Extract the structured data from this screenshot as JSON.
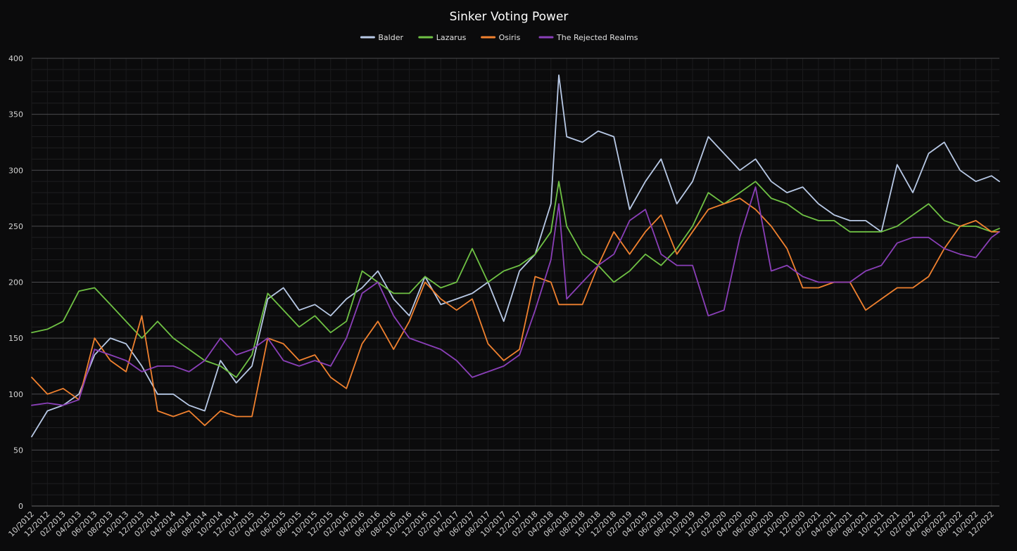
{
  "chart_data": {
    "type": "line",
    "title": "Sinker Voting Power",
    "xlabel": "",
    "ylabel": "",
    "ylim": [
      0,
      400
    ],
    "yticks": [
      0,
      50,
      100,
      150,
      200,
      250,
      300,
      350,
      400
    ],
    "x_start": "2012-10",
    "x_end": "2023-01",
    "xtick_labels": [
      "10/2012",
      "12/2012",
      "02/2013",
      "04/2013",
      "06/2013",
      "08/2013",
      "10/2013",
      "12/2013",
      "02/2014",
      "04/2014",
      "06/2014",
      "08/2014",
      "10/2014",
      "12/2014",
      "02/2015",
      "04/2015",
      "06/2015",
      "08/2015",
      "10/2015",
      "12/2015",
      "02/2016",
      "04/2016",
      "06/2016",
      "08/2016",
      "10/2016",
      "12/2016",
      "02/2017",
      "04/2017",
      "06/2017",
      "08/2017",
      "10/2017",
      "12/2017",
      "02/2018",
      "04/2018",
      "06/2018",
      "08/2018",
      "10/2018",
      "12/2018",
      "02/2019",
      "04/2019",
      "06/2019",
      "08/2019",
      "10/2019",
      "12/2019",
      "02/2020",
      "04/2020",
      "06/2020",
      "08/2020",
      "10/2020",
      "12/2020",
      "02/2021",
      "04/2021",
      "06/2021",
      "08/2021",
      "10/2021",
      "12/2021",
      "02/2022",
      "04/2022",
      "06/2022",
      "08/2022",
      "10/2022",
      "12/2022"
    ],
    "grid": true,
    "legend_position": "top-center",
    "background": "#0b0b0c",
    "series": [
      {
        "name": "Balder",
        "color": "#b8c9e6",
        "x": [
          "2012-10",
          "2012-12",
          "2013-02",
          "2013-04",
          "2013-06",
          "2013-08",
          "2013-10",
          "2013-12",
          "2014-02",
          "2014-04",
          "2014-06",
          "2014-08",
          "2014-10",
          "2014-12",
          "2015-02",
          "2015-04",
          "2015-06",
          "2015-08",
          "2015-10",
          "2015-12",
          "2016-02",
          "2016-04",
          "2016-06",
          "2016-08",
          "2016-10",
          "2016-12",
          "2017-02",
          "2017-04",
          "2017-06",
          "2017-08",
          "2017-10",
          "2017-12",
          "2018-02",
          "2018-04",
          "2018-05",
          "2018-06",
          "2018-08",
          "2018-10",
          "2018-12",
          "2019-02",
          "2019-04",
          "2019-06",
          "2019-08",
          "2019-10",
          "2019-12",
          "2020-02",
          "2020-04",
          "2020-06",
          "2020-08",
          "2020-10",
          "2020-12",
          "2021-02",
          "2021-04",
          "2021-06",
          "2021-08",
          "2021-10",
          "2021-12",
          "2022-02",
          "2022-04",
          "2022-06",
          "2022-08",
          "2022-10",
          "2022-12",
          "2023-01"
        ],
        "values": [
          62,
          85,
          90,
          100,
          135,
          150,
          145,
          125,
          100,
          100,
          90,
          85,
          130,
          110,
          125,
          185,
          195,
          175,
          180,
          170,
          185,
          195,
          210,
          185,
          170,
          205,
          180,
          185,
          190,
          200,
          165,
          210,
          225,
          270,
          385,
          330,
          325,
          335,
          330,
          265,
          290,
          310,
          270,
          290,
          330,
          315,
          300,
          310,
          290,
          280,
          285,
          270,
          260,
          255,
          255,
          245,
          305,
          280,
          315,
          325,
          300,
          290,
          295,
          290
        ]
      },
      {
        "name": "Lazarus",
        "color": "#6fc144",
        "x": [
          "2012-10",
          "2012-12",
          "2013-02",
          "2013-04",
          "2013-06",
          "2013-08",
          "2013-10",
          "2013-12",
          "2014-02",
          "2014-04",
          "2014-06",
          "2014-08",
          "2014-10",
          "2014-12",
          "2015-02",
          "2015-04",
          "2015-06",
          "2015-08",
          "2015-10",
          "2015-12",
          "2016-02",
          "2016-04",
          "2016-06",
          "2016-08",
          "2016-10",
          "2016-12",
          "2017-02",
          "2017-04",
          "2017-06",
          "2017-08",
          "2017-10",
          "2017-12",
          "2018-02",
          "2018-04",
          "2018-05",
          "2018-06",
          "2018-08",
          "2018-10",
          "2018-12",
          "2019-02",
          "2019-04",
          "2019-06",
          "2019-08",
          "2019-10",
          "2019-12",
          "2020-02",
          "2020-04",
          "2020-06",
          "2020-08",
          "2020-10",
          "2020-12",
          "2021-02",
          "2021-04",
          "2021-06",
          "2021-08",
          "2021-10",
          "2021-12",
          "2022-02",
          "2022-04",
          "2022-06",
          "2022-08",
          "2022-10",
          "2022-12",
          "2023-01"
        ],
        "values": [
          155,
          158,
          165,
          192,
          195,
          180,
          165,
          150,
          165,
          150,
          140,
          130,
          125,
          115,
          135,
          190,
          175,
          160,
          170,
          155,
          165,
          210,
          200,
          190,
          190,
          205,
          195,
          200,
          230,
          200,
          210,
          215,
          225,
          245,
          290,
          250,
          225,
          215,
          200,
          210,
          225,
          215,
          230,
          250,
          280,
          270,
          280,
          290,
          275,
          270,
          260,
          255,
          255,
          245,
          245,
          245,
          250,
          260,
          270,
          255,
          250,
          250,
          245,
          248
        ]
      },
      {
        "name": "Osiris",
        "color": "#f0812f",
        "x": [
          "2012-10",
          "2012-12",
          "2013-02",
          "2013-04",
          "2013-06",
          "2013-08",
          "2013-10",
          "2013-12",
          "2014-02",
          "2014-04",
          "2014-06",
          "2014-08",
          "2014-10",
          "2014-12",
          "2015-02",
          "2015-04",
          "2015-06",
          "2015-08",
          "2015-10",
          "2015-12",
          "2016-02",
          "2016-04",
          "2016-06",
          "2016-08",
          "2016-10",
          "2016-12",
          "2017-02",
          "2017-04",
          "2017-06",
          "2017-08",
          "2017-10",
          "2017-12",
          "2018-02",
          "2018-04",
          "2018-05",
          "2018-06",
          "2018-08",
          "2018-10",
          "2018-12",
          "2019-02",
          "2019-04",
          "2019-06",
          "2019-08",
          "2019-10",
          "2019-12",
          "2020-02",
          "2020-04",
          "2020-06",
          "2020-08",
          "2020-10",
          "2020-12",
          "2021-02",
          "2021-04",
          "2021-06",
          "2021-08",
          "2021-10",
          "2021-12",
          "2022-02",
          "2022-04",
          "2022-06",
          "2022-08",
          "2022-10",
          "2022-12",
          "2023-01"
        ],
        "values": [
          115,
          100,
          105,
          95,
          150,
          130,
          120,
          170,
          85,
          80,
          85,
          72,
          85,
          80,
          80,
          150,
          145,
          130,
          135,
          115,
          105,
          145,
          165,
          140,
          165,
          200,
          185,
          175,
          185,
          145,
          130,
          140,
          205,
          200,
          180,
          180,
          180,
          215,
          245,
          225,
          245,
          260,
          225,
          245,
          265,
          270,
          275,
          265,
          250,
          230,
          195,
          195,
          200,
          200,
          175,
          185,
          195,
          195,
          205,
          230,
          250,
          255,
          245,
          245
        ]
      },
      {
        "name": "The Rejected Realms",
        "color": "#8a3fb8",
        "x": [
          "2012-10",
          "2012-12",
          "2013-02",
          "2013-04",
          "2013-06",
          "2013-08",
          "2013-10",
          "2013-12",
          "2014-02",
          "2014-04",
          "2014-06",
          "2014-08",
          "2014-10",
          "2014-12",
          "2015-02",
          "2015-04",
          "2015-06",
          "2015-08",
          "2015-10",
          "2015-12",
          "2016-02",
          "2016-04",
          "2016-06",
          "2016-08",
          "2016-10",
          "2016-12",
          "2017-02",
          "2017-04",
          "2017-06",
          "2017-08",
          "2017-10",
          "2017-12",
          "2018-02",
          "2018-04",
          "2018-05",
          "2018-06",
          "2018-08",
          "2018-10",
          "2018-12",
          "2019-02",
          "2019-04",
          "2019-06",
          "2019-08",
          "2019-10",
          "2019-12",
          "2020-02",
          "2020-04",
          "2020-06",
          "2020-08",
          "2020-10",
          "2020-12",
          "2021-02",
          "2021-04",
          "2021-06",
          "2021-08",
          "2021-10",
          "2021-12",
          "2022-02",
          "2022-04",
          "2022-06",
          "2022-08",
          "2022-10",
          "2022-12",
          "2023-01"
        ],
        "values": [
          90,
          92,
          90,
          95,
          140,
          135,
          130,
          120,
          125,
          125,
          120,
          130,
          150,
          135,
          140,
          150,
          130,
          125,
          130,
          125,
          150,
          190,
          200,
          170,
          150,
          145,
          140,
          130,
          115,
          120,
          125,
          135,
          175,
          220,
          270,
          185,
          200,
          215,
          225,
          255,
          265,
          225,
          215,
          215,
          170,
          175,
          240,
          285,
          210,
          215,
          205,
          200,
          200,
          200,
          210,
          215,
          235,
          240,
          240,
          230,
          225,
          222,
          240,
          245
        ]
      }
    ]
  }
}
